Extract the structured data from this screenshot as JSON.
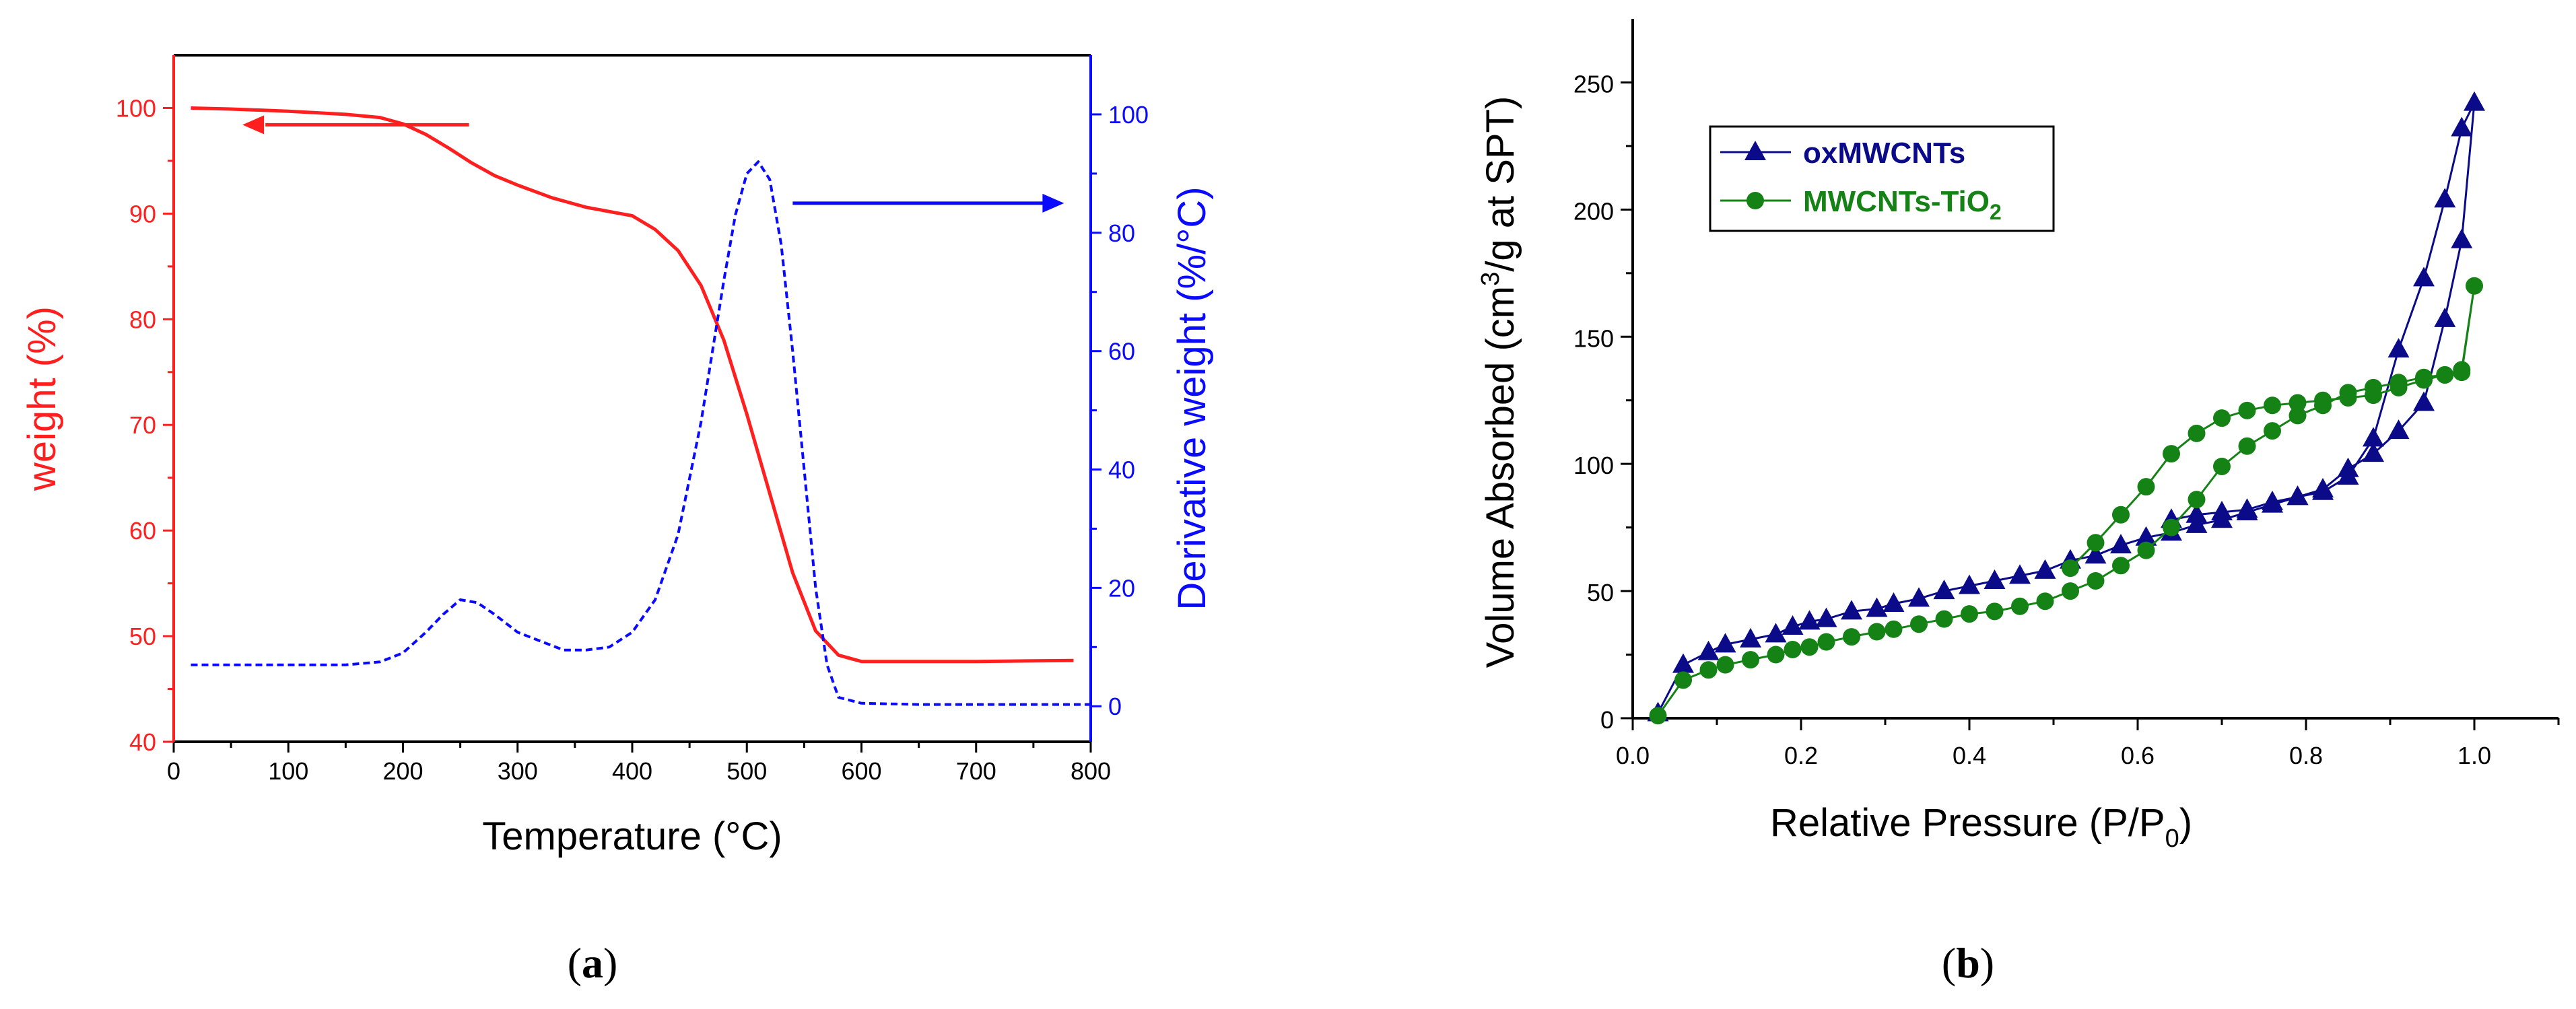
{
  "colors": {
    "weight": "#ff1f1f",
    "derivative": "#0a0aff",
    "ox": "#0b0b8a",
    "tio2": "#148214",
    "axis": "#000000"
  },
  "panels": {
    "a": {
      "label_open": "(",
      "label_letter": "a",
      "label_close": ")"
    },
    "b": {
      "label_open": "(",
      "label_letter": "b",
      "label_close": ")"
    }
  },
  "chart_data": [
    {
      "type": "line",
      "panel": "a",
      "xlabel": "Temperature (°C)",
      "ylabel_left": "weight (%)",
      "ylabel_right": "Derivative weight (%/°C)",
      "xlim": [
        0,
        800
      ],
      "ylim_left": [
        40,
        105
      ],
      "ylim_right": [
        -6,
        110
      ],
      "x_ticks": [
        0,
        100,
        200,
        300,
        400,
        500,
        600,
        700,
        800
      ],
      "y_left_ticks": [
        40,
        50,
        60,
        70,
        80,
        90,
        100
      ],
      "y_right_ticks": [
        0,
        20,
        40,
        60,
        80,
        100
      ],
      "series": [
        {
          "name": "weight",
          "axis": "left",
          "style": "solid",
          "x": [
            15,
            50,
            100,
            150,
            180,
            200,
            220,
            240,
            260,
            280,
            300,
            330,
            360,
            390,
            400,
            420,
            440,
            460,
            480,
            500,
            520,
            540,
            560,
            580,
            600,
            620,
            700,
            785
          ],
          "y": [
            100,
            99.9,
            99.7,
            99.4,
            99.1,
            98.5,
            97.5,
            96.2,
            94.8,
            93.6,
            92.7,
            91.5,
            90.6,
            90.0,
            89.8,
            88.5,
            86.5,
            83.2,
            78,
            71,
            63.5,
            56,
            50.5,
            48.2,
            47.6,
            47.6,
            47.6,
            47.7
          ]
        },
        {
          "name": "derivative weight",
          "axis": "right",
          "style": "dashed",
          "x": [
            15,
            50,
            100,
            150,
            180,
            200,
            220,
            235,
            250,
            265,
            280,
            300,
            320,
            340,
            360,
            380,
            400,
            420,
            440,
            460,
            480,
            490,
            500,
            510,
            520,
            530,
            540,
            550,
            560,
            570,
            580,
            600,
            650,
            700,
            750,
            800
          ],
          "y": [
            7,
            7,
            7,
            7,
            7.5,
            9,
            12.5,
            15.5,
            18,
            17.5,
            15.5,
            12.5,
            11,
            9.5,
            9.5,
            10,
            12.5,
            18,
            29,
            48,
            72,
            83,
            90,
            92,
            89,
            78,
            60,
            40,
            20,
            7,
            1.5,
            0.5,
            0.3,
            0.3,
            0.3,
            0.3
          ]
        }
      ],
      "annotations": [
        {
          "text": "left arrow",
          "points_to_axis": "left",
          "at_x": 240,
          "at_y": 96.5
        },
        {
          "text": "right arrow",
          "points_to_axis": "right",
          "at_x": 560,
          "at_y": 85
        }
      ]
    },
    {
      "type": "line",
      "panel": "b",
      "xlabel": "Relative Pressure (P/P",
      "xlabel_sub": "0",
      "xlabel_end": ")",
      "ylabel": "Volume Absorbed (cm",
      "ylabel_sup": "3",
      "ylabel_end": "/g at SPT)",
      "xlim": [
        0.0,
        1.1
      ],
      "ylim": [
        0,
        275
      ],
      "x_ticks": [
        0.0,
        0.2,
        0.4,
        0.6,
        0.8,
        1.0
      ],
      "x_tick_labels": [
        "0.0",
        "0.2",
        "0.4",
        "0.6",
        "0.8",
        "1.0"
      ],
      "y_ticks": [
        0,
        50,
        100,
        150,
        200,
        250
      ],
      "legend": {
        "position": "top-left"
      },
      "series": [
        {
          "name": "oxMWCNTs",
          "name_main": "oxMWCNTs",
          "marker": "triangle",
          "x": [
            0.03,
            0.06,
            0.09,
            0.11,
            0.14,
            0.17,
            0.19,
            0.21,
            0.23,
            0.26,
            0.29,
            0.31,
            0.34,
            0.37,
            0.4,
            0.43,
            0.46,
            0.49,
            0.52,
            0.55,
            0.58,
            0.61,
            0.64,
            0.67,
            0.7,
            0.73,
            0.76,
            0.79,
            0.82,
            0.85,
            0.88,
            0.91,
            0.94,
            0.965,
            0.985,
            1.0,
            0.985,
            0.965,
            0.94,
            0.91,
            0.88,
            0.85,
            0.82,
            0.79,
            0.76,
            0.73,
            0.7,
            0.67,
            0.64
          ],
          "y": [
            2,
            21,
            26,
            29,
            31,
            33,
            36,
            38,
            39,
            42,
            43,
            45,
            47,
            50,
            52,
            54,
            56,
            58,
            62,
            64,
            68,
            71,
            73,
            76,
            78,
            81,
            84,
            87,
            89,
            95,
            110,
            145,
            173,
            204,
            232,
            242,
            188,
            157,
            124,
            113,
            104,
            98,
            90,
            87,
            85,
            82,
            81,
            80,
            78
          ]
        },
        {
          "name": "MWCNTs-TiO2",
          "name_main": "MWCNTs-TiO",
          "name_sub": "2",
          "marker": "circle",
          "x": [
            0.03,
            0.06,
            0.09,
            0.11,
            0.14,
            0.17,
            0.19,
            0.21,
            0.23,
            0.26,
            0.29,
            0.31,
            0.34,
            0.37,
            0.4,
            0.43,
            0.46,
            0.49,
            0.52,
            0.55,
            0.58,
            0.61,
            0.64,
            0.67,
            0.7,
            0.73,
            0.76,
            0.79,
            0.82,
            0.85,
            0.88,
            0.91,
            0.94,
            0.965,
            0.985,
            1.0,
            0.985,
            0.965,
            0.94,
            0.91,
            0.88,
            0.85,
            0.82,
            0.79,
            0.76,
            0.73,
            0.7,
            0.67,
            0.64,
            0.61,
            0.58,
            0.55,
            0.52
          ],
          "y": [
            1,
            15,
            19,
            21,
            23,
            25,
            27,
            28,
            30,
            32,
            34,
            35,
            37,
            39,
            41,
            42,
            44,
            46,
            50,
            54,
            60,
            66,
            75,
            86,
            99,
            107,
            113,
            119,
            123,
            128,
            130,
            132,
            134,
            135,
            136,
            170,
            137,
            135,
            133,
            130,
            127,
            126,
            125,
            124,
            123,
            121,
            118,
            112,
            104,
            91,
            80,
            69,
            59
          ]
        }
      ]
    }
  ]
}
